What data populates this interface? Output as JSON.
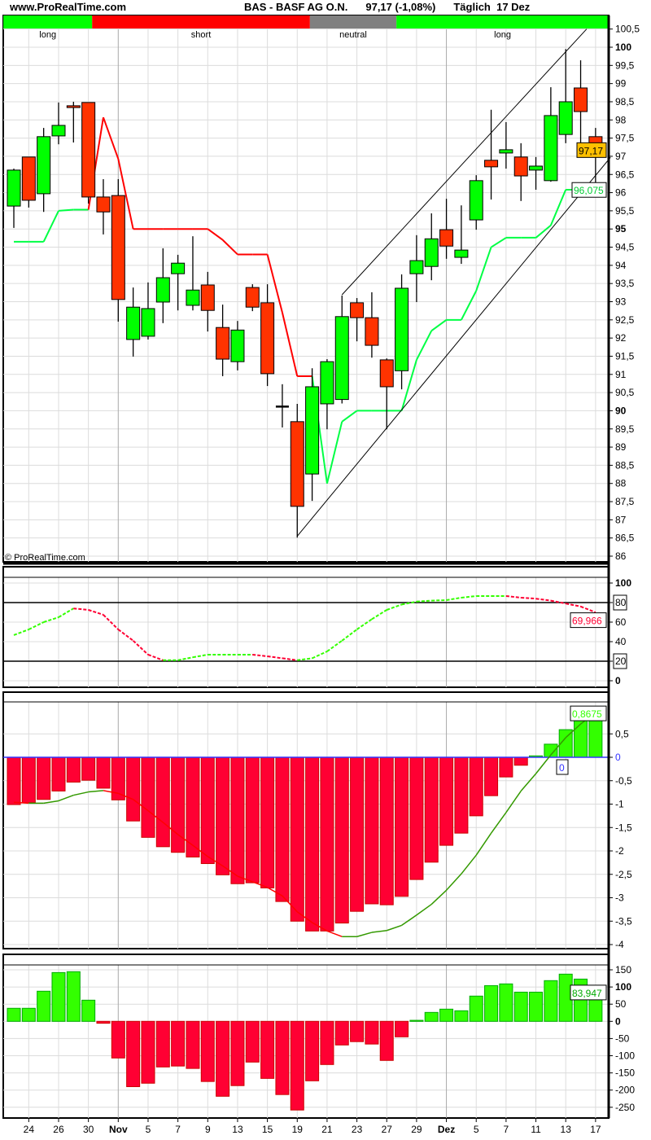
{
  "header": {
    "site": "www.ProRealTime.com",
    "symbol": "BAS - BASF AG O.N.",
    "quote": "97,17 (-1,08%)",
    "period": "Täglich  17 Dez"
  },
  "watermark": "© ProRealTime.com",
  "trend_bar": [
    {
      "label": "long",
      "state": "long",
      "from": -0.7,
      "to": 5.25,
      "color": "#00ff00"
    },
    {
      "label": "short",
      "state": "short",
      "from": 5.25,
      "to": 19.85,
      "color": "#ff0000"
    },
    {
      "label": "neutral",
      "state": "neutral",
      "from": 19.85,
      "to": 25.65,
      "color": "#808080"
    },
    {
      "label": "long",
      "state": "long",
      "from": 25.65,
      "to": 40.1,
      "color": "#00ff00"
    }
  ],
  "x_labels": [
    {
      "i": 1,
      "label": "24"
    },
    {
      "i": 3,
      "label": "26"
    },
    {
      "i": 5,
      "label": "30"
    },
    {
      "i": 7,
      "label": "Nov",
      "major": true
    },
    {
      "i": 9,
      "label": "5"
    },
    {
      "i": 11,
      "label": "7"
    },
    {
      "i": 13,
      "label": "9"
    },
    {
      "i": 15,
      "label": "13"
    },
    {
      "i": 17,
      "label": "15"
    },
    {
      "i": 19,
      "label": "19"
    },
    {
      "i": 21,
      "label": "21"
    },
    {
      "i": 23,
      "label": "23"
    },
    {
      "i": 25,
      "label": "27"
    },
    {
      "i": 27,
      "label": "29"
    },
    {
      "i": 29,
      "label": "Dez",
      "major": true
    },
    {
      "i": 31,
      "label": "5"
    },
    {
      "i": 33,
      "label": "7"
    },
    {
      "i": 35,
      "label": "11"
    },
    {
      "i": 37,
      "label": "13"
    },
    {
      "i": 39,
      "label": "17"
    }
  ],
  "colors": {
    "up": "#00ff00",
    "down": "#ff3300",
    "ind_up": "#33ff00",
    "ind_down": "#ff0033",
    "stop_up": "#00ff44",
    "stop_down": "#ff0000",
    "macd_up": "#339900",
    "macd_down": "#ff0000",
    "zero": "#3333ff",
    "price_tag": "#ffc000"
  },
  "chart_data": [
    {
      "type": "candlestick",
      "title": "BAS - BASF AG O.N.",
      "ylim": [
        85.75,
        100.85
      ],
      "yticks": [
        86,
        86.5,
        87,
        87.5,
        88,
        88.5,
        89,
        89.5,
        90,
        90.5,
        91,
        91.5,
        92,
        92.5,
        93,
        93.5,
        94,
        94.5,
        95,
        95.5,
        96,
        96.5,
        97,
        97.5,
        98,
        98.5,
        99,
        99.5,
        100,
        100.5
      ],
      "ohlc": [
        [
          95.63,
          96.66,
          95.03,
          96.62
        ],
        [
          96.98,
          96.98,
          95.59,
          95.79
        ],
        [
          95.97,
          97.78,
          95.47,
          97.54
        ],
        [
          97.56,
          98.48,
          97.33,
          97.85
        ],
        [
          98.39,
          98.5,
          97.38,
          98.34
        ],
        [
          98.48,
          98.48,
          95.7,
          95.88
        ],
        [
          95.88,
          96.37,
          94.85,
          95.47
        ],
        [
          95.92,
          96.37,
          92.45,
          93.06
        ],
        [
          91.96,
          93.39,
          91.49,
          92.85
        ],
        [
          92.05,
          93.53,
          91.96,
          92.81
        ],
        [
          92.99,
          94.47,
          92.41,
          93.66
        ],
        [
          93.77,
          94.29,
          92.76,
          94.06
        ],
        [
          92.9,
          94.8,
          92.76,
          93.32
        ],
        [
          93.46,
          93.82,
          92.18,
          92.76
        ],
        [
          92.29,
          92.92,
          90.95,
          91.42
        ],
        [
          91.35,
          92.47,
          91.11,
          92.22
        ],
        [
          93.39,
          93.48,
          92.74,
          92.85
        ],
        [
          92.97,
          93.48,
          90.68,
          91.02
        ],
        [
          90.12,
          90.73,
          89.54,
          90.12
        ],
        [
          89.7,
          90.19,
          86.51,
          87.37
        ],
        [
          88.26,
          91.17,
          87.52,
          90.66
        ],
        [
          90.19,
          91.42,
          89.49,
          91.35
        ],
        [
          90.31,
          93.17,
          90.2,
          92.59
        ],
        [
          92.97,
          93.1,
          91.91,
          92.56
        ],
        [
          92.56,
          93.26,
          91.46,
          91.8
        ],
        [
          91.4,
          91.44,
          89.49,
          90.66
        ],
        [
          91.1,
          93.75,
          90.59,
          93.37
        ],
        [
          93.77,
          94.83,
          92.99,
          94.13
        ],
        [
          93.97,
          95.43,
          93.59,
          94.73
        ],
        [
          94.98,
          95.83,
          94.18,
          94.53
        ],
        [
          94.22,
          95.65,
          94.04,
          94.42
        ],
        [
          95.25,
          96.48,
          94.98,
          96.33
        ],
        [
          96.89,
          98.28,
          95.81,
          96.71
        ],
        [
          97.09,
          97.94,
          96.66,
          97.18
        ],
        [
          96.98,
          97.36,
          95.77,
          96.46
        ],
        [
          96.62,
          96.98,
          96.08,
          96.73
        ],
        [
          96.33,
          98.9,
          96.3,
          98.12
        ],
        [
          97.6,
          99.95,
          97.36,
          98.5
        ],
        [
          98.88,
          99.64,
          97.15,
          98.23
        ],
        [
          97.54,
          97.78,
          96.19,
          97.17
        ]
      ],
      "trailing_stop": {
        "values": [
          94.65,
          94.65,
          94.65,
          95.5,
          95.53,
          95.53,
          98.07,
          96.93,
          95,
          95,
          95,
          95,
          95,
          95,
          94.7,
          94.3,
          94.3,
          94.3,
          92.7,
          90.95,
          90.95,
          88,
          89.7,
          90,
          90,
          90,
          90,
          91.4,
          92.2,
          92.5,
          92.5,
          93.3,
          94.5,
          94.76,
          94.76,
          94.76,
          95.1,
          96.08,
          96.08,
          96.08
        ],
        "short_range": [
          6,
          20
        ]
      },
      "channel": {
        "lower": [
          [
            19,
            86.55
          ],
          [
            40,
            96.97
          ]
        ],
        "upper": [
          [
            22,
            93.19
          ],
          [
            38.4,
            100.5
          ]
        ]
      },
      "last_price_label": "97,17",
      "stop_label": "96,075"
    },
    {
      "type": "line",
      "name": "stochastic",
      "ylim": [
        0,
        100
      ],
      "yticks": [
        0,
        20,
        40,
        60,
        80,
        100
      ],
      "levels": [
        20,
        80
      ],
      "values": [
        46.7,
        52.5,
        60,
        65,
        74,
        72.5,
        67.5,
        52.5,
        41,
        26.7,
        21,
        21,
        24,
        26.7,
        26.7,
        26.7,
        26.7,
        25,
        23,
        21,
        23,
        30,
        41,
        52.5,
        63,
        72.5,
        78,
        81,
        82,
        82.5,
        85,
        86.7,
        86.7,
        86.7,
        85,
        84,
        82,
        79,
        76,
        70
      ],
      "last_label": "69,966"
    },
    {
      "type": "bar+line",
      "name": "macd",
      "ylim": [
        -4.05,
        1.25
      ],
      "yticks": [
        -4,
        -3.5,
        -3,
        -2.5,
        -2,
        -1.5,
        -1,
        -0.5,
        0,
        0.5
      ],
      "histogram": [
        -1.01,
        -0.97,
        -0.9,
        -0.72,
        -0.53,
        -0.49,
        -0.66,
        -0.91,
        -1.36,
        -1.71,
        -1.91,
        -2.03,
        -2.13,
        -2.27,
        -2.51,
        -2.7,
        -2.68,
        -2.79,
        -3.08,
        -3.5,
        -3.71,
        -3.71,
        -3.54,
        -3.29,
        -3.13,
        -3.15,
        -2.97,
        -2.61,
        -2.24,
        -1.88,
        -1.62,
        -1.25,
        -0.82,
        -0.42,
        -0.17,
        0.03,
        0.28,
        0.59,
        0.84,
        0.8675
      ],
      "line": [
        -0.96,
        -0.98,
        -0.98,
        -0.93,
        -0.81,
        -0.74,
        -0.71,
        -0.77,
        -0.9,
        -1.14,
        -1.39,
        -1.65,
        -1.88,
        -2.12,
        -2.32,
        -2.54,
        -2.66,
        -2.78,
        -2.96,
        -3.3,
        -3.53,
        -3.71,
        -3.83,
        -3.83,
        -3.74,
        -3.7,
        -3.59,
        -3.37,
        -3.14,
        -2.84,
        -2.49,
        -2.09,
        -1.62,
        -1.18,
        -0.72,
        -0.35,
        0.05,
        0.42,
        0.71,
        0.96
      ],
      "last_label": "0,8675",
      "zero_label": "0"
    },
    {
      "type": "bar",
      "name": "momentum",
      "ylim": [
        -280,
        165
      ],
      "yticks": [
        -250,
        -200,
        -150,
        -100,
        -50,
        0,
        50,
        100,
        150
      ],
      "values": [
        38,
        38,
        87.7,
        142,
        144.5,
        61.6,
        -5.5,
        -106.6,
        -190,
        -180,
        -132.7,
        -130,
        -137,
        -175,
        -218,
        -187,
        -118.5,
        -166,
        -213,
        -258,
        -173,
        -125.6,
        -68.7,
        -59,
        -66,
        -113.7,
        -45,
        3,
        26,
        35.5,
        30.8,
        73.5,
        104,
        109,
        85,
        85,
        118.5,
        137.4,
        123,
        83.947
      ],
      "last_label": "83,947"
    }
  ]
}
